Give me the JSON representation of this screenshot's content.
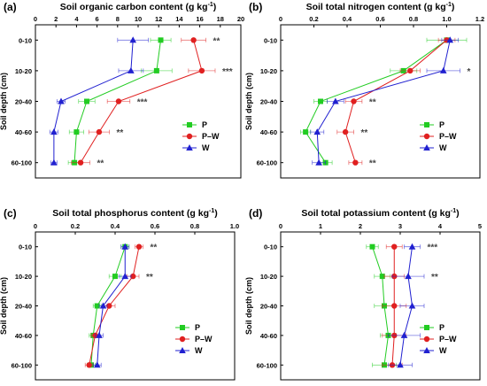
{
  "colors": {
    "P": "#22cc22",
    "P-W": "#e02020",
    "W": "#2020d0"
  },
  "chart_data": [
    {
      "type": "line",
      "panel_label": "(a)",
      "title": "Soil organic carbon content (g kg",
      "title_sup": "-1",
      "title_end": ")",
      "ylabel": "Soil depth (cm)",
      "xlim": [
        0,
        20
      ],
      "xticks": [
        "0",
        "2",
        "4",
        "6",
        "8",
        "10",
        "12",
        "14",
        "16",
        "18",
        "20"
      ],
      "categories": [
        "0-10",
        "10-20",
        "20-40",
        "40-60",
        "60-100"
      ],
      "series": [
        {
          "name": "P",
          "values": [
            12.2,
            11.8,
            5.0,
            4.0,
            3.8
          ],
          "errors": [
            1.0,
            1.5,
            0.8,
            0.7,
            0.6
          ]
        },
        {
          "name": "P–W",
          "values": [
            15.4,
            16.2,
            8.1,
            6.2,
            4.4
          ],
          "errors": [
            1.2,
            1.3,
            1.1,
            1.0,
            0.9
          ]
        },
        {
          "name": "W",
          "values": [
            9.5,
            9.3,
            2.5,
            1.8,
            1.8
          ],
          "errors": [
            1.5,
            1.2,
            0.4,
            0.4,
            0.3
          ]
        }
      ],
      "significance": [
        "**",
        "***",
        "***",
        "**",
        "**"
      ],
      "legend": [
        "P",
        "P–W",
        "W"
      ]
    },
    {
      "type": "line",
      "panel_label": "(b)",
      "title": "Soil total nitrogen content (g kg",
      "title_sup": "-1",
      "title_end": ")",
      "ylabel": "Soil depth (cm)",
      "xlim": [
        0,
        1.2
      ],
      "xticks": [
        "0",
        "0.2",
        "0.4",
        "0.6",
        "0.8",
        "1.0",
        "1.2"
      ],
      "categories": [
        "0-10",
        "10-20",
        "20-40",
        "40-60",
        "60-100"
      ],
      "series": [
        {
          "name": "P",
          "values": [
            1.0,
            0.74,
            0.24,
            0.15,
            0.27
          ],
          "errors": [
            0.12,
            0.08,
            0.04,
            0.03,
            0.04
          ]
        },
        {
          "name": "P–W",
          "values": [
            1.0,
            0.78,
            0.44,
            0.39,
            0.45
          ],
          "errors": [
            0.05,
            0.06,
            0.05,
            0.05,
            0.04
          ]
        },
        {
          "name": "W",
          "values": [
            1.02,
            0.98,
            0.33,
            0.22,
            0.23
          ],
          "errors": [
            0.05,
            0.1,
            0.05,
            0.04,
            0.04
          ]
        }
      ],
      "significance": [
        "",
        "*",
        "**",
        "**",
        "**"
      ],
      "legend": [
        "P",
        "P–W",
        "W"
      ]
    },
    {
      "type": "line",
      "panel_label": "(c)",
      "title": "Soil total phosphorus content (g kg",
      "title_sup": "-1",
      "title_end": ")",
      "ylabel": "Soil depth (cm)",
      "xlim": [
        0,
        1.0
      ],
      "xticks": [
        "0",
        "0.2",
        "0.4",
        "0.6",
        "0.8",
        "1.0"
      ],
      "categories": [
        "0-10",
        "10-20",
        "20-40",
        "40-60",
        "60-100"
      ],
      "series": [
        {
          "name": "P",
          "values": [
            0.45,
            0.4,
            0.31,
            0.29,
            0.28
          ],
          "errors": [
            0.02,
            0.03,
            0.02,
            0.02,
            0.02
          ]
        },
        {
          "name": "P–W",
          "values": [
            0.52,
            0.49,
            0.37,
            0.3,
            0.27
          ],
          "errors": [
            0.02,
            0.03,
            0.03,
            0.02,
            0.02
          ]
        },
        {
          "name": "W",
          "values": [
            0.45,
            0.45,
            0.34,
            0.32,
            0.31
          ],
          "errors": [
            0.02,
            0.03,
            0.02,
            0.02,
            0.02
          ]
        }
      ],
      "significance": [
        "**",
        "**",
        "",
        "",
        ""
      ],
      "legend": [
        "P",
        "P–W",
        "W"
      ]
    },
    {
      "type": "line",
      "panel_label": "(d)",
      "title": "Soil total potassium content (g kg",
      "title_sup": "-1",
      "title_end": ")",
      "ylabel": "Soil depth (cm)",
      "xlim": [
        0,
        5
      ],
      "xticks": [
        "0",
        "1",
        "2",
        "3",
        "4",
        "5"
      ],
      "categories": [
        "0-10",
        "10-20",
        "20-40",
        "40-60",
        "60-100"
      ],
      "series": [
        {
          "name": "P",
          "values": [
            2.3,
            2.55,
            2.6,
            2.7,
            2.6
          ],
          "errors": [
            0.15,
            0.2,
            0.25,
            0.2,
            0.3
          ]
        },
        {
          "name": "P–W",
          "values": [
            2.85,
            2.85,
            2.85,
            2.85,
            2.8
          ],
          "errors": [
            0.2,
            0.25,
            0.3,
            0.3,
            0.25
          ]
        },
        {
          "name": "W",
          "values": [
            3.3,
            3.2,
            3.3,
            3.1,
            3.0
          ],
          "errors": [
            0.2,
            0.4,
            0.3,
            0.4,
            0.3
          ]
        }
      ],
      "significance": [
        "***",
        "**",
        "",
        "",
        ""
      ],
      "legend": [
        "P",
        "P–W",
        "W"
      ]
    }
  ]
}
